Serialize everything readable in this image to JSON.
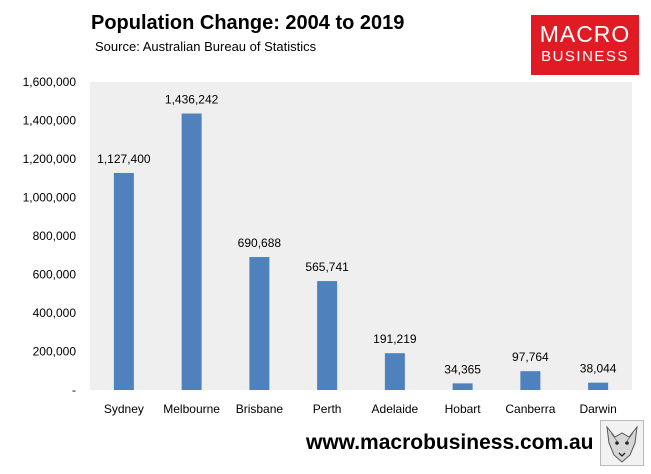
{
  "chart_data": {
    "type": "bar",
    "title": "Population Change: 2004 to 2019",
    "subtitle": "Source: Australian Bureau of Statistics",
    "categories": [
      "Sydney",
      "Melbourne",
      "Brisbane",
      "Perth",
      "Adelaide",
      "Hobart",
      "Canberra",
      "Darwin"
    ],
    "values": [
      1127400,
      1436242,
      690688,
      565741,
      191219,
      34365,
      97764,
      38044
    ],
    "data_labels": [
      "1,127,400",
      "1,436,242",
      "690,688",
      "565,741",
      "191,219",
      "34,365",
      "97,764",
      "38,044"
    ],
    "y_ticks": [
      0,
      200000,
      400000,
      600000,
      800000,
      1000000,
      1200000,
      1400000,
      1600000
    ],
    "y_tick_labels": [
      "-",
      "200,000",
      "400,000",
      "600,000",
      "800,000",
      "1,000,000",
      "1,200,000",
      "1,400,000",
      "1,600,000"
    ],
    "ylim": [
      0,
      1600000
    ],
    "xlabel": "",
    "ylabel": "",
    "grid": false,
    "bar_color": "#4f81bd",
    "plot_background": "#efefef"
  },
  "branding": {
    "logo_line1": "MACRO",
    "logo_line2": "BUSINESS",
    "logo_color": "#e01b24",
    "website": "www.macrobusiness.com.au"
  }
}
